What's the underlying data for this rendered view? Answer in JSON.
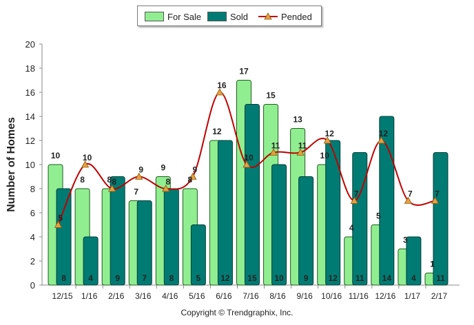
{
  "legend": {
    "for_sale": "For Sale",
    "sold": "Sold",
    "pended": "Pended"
  },
  "copyright": "Copyright © Trendgraphix, Inc.",
  "chart_data": {
    "type": "bar",
    "title": "",
    "xlabel": "",
    "ylabel": "Number of Homes",
    "ylim": [
      0,
      20
    ],
    "yticks": [
      0,
      2,
      4,
      6,
      8,
      10,
      12,
      14,
      16,
      18,
      20
    ],
    "grid": false,
    "legend_position": "top-center",
    "categories": [
      "12/15",
      "1/16",
      "2/16",
      "3/16",
      "4/16",
      "5/16",
      "6/16",
      "7/16",
      "8/16",
      "9/16",
      "10/16",
      "11/16",
      "12/16",
      "1/17",
      "2/17"
    ],
    "series": [
      {
        "name": "For Sale",
        "kind": "bar",
        "color": "#90ee90",
        "values": [
          10,
          8,
          8,
          7,
          9,
          8,
          12,
          17,
          15,
          13,
          10,
          4,
          5,
          3,
          1
        ]
      },
      {
        "name": "Sold",
        "kind": "bar",
        "color": "#007b73",
        "values": [
          8,
          4,
          9,
          7,
          8,
          5,
          12,
          15,
          10,
          9,
          12,
          11,
          14,
          4,
          11
        ]
      },
      {
        "name": "Pended",
        "kind": "line",
        "color": "#c00000",
        "marker_color": "#e8a040",
        "values": [
          5,
          10,
          8,
          9,
          8,
          9,
          16,
          10,
          11,
          11,
          12,
          7,
          12,
          7,
          7
        ]
      }
    ]
  }
}
